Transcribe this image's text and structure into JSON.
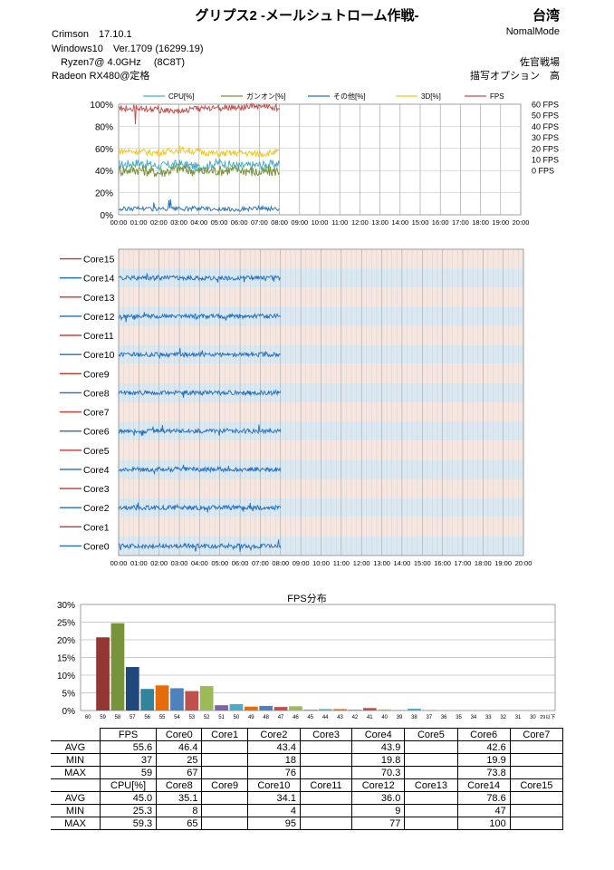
{
  "header": {
    "title": "グリプス2 -メールシュトローム作戦-",
    "region": "台湾",
    "driver": "Crimson　17.10.1",
    "mode": "NomalMode",
    "os": "Windows10　Ver.1709 (16299.19)",
    "cpu": "Ryzen7@ 4.0GHz　 (8C8T)",
    "map": "佐官戦場",
    "gpu": "Radeon RX480@定格",
    "option": "描写オプション　高"
  },
  "colors": {
    "cpu": "#4bacc6",
    "gundam": "#77933c",
    "other": "#2e75b6",
    "d3": "#f2c824",
    "fps": "#c0504d",
    "core_even_line": "#1f6fbf",
    "core_odd_line": "#c0392b",
    "band_blue": "#dae8f2",
    "band_pink": "#f6e6df",
    "bar_red": "#943634",
    "bar_green": "#77933c",
    "bar_navy": "#1f497d",
    "bar_teal": "#31849b",
    "bar_orange": "#e46c0a",
    "bar_blue": "#4f81bd",
    "bar_red2": "#c0504d",
    "bar_lgreen": "#9bbb59",
    "bar_purple": "#8064a2",
    "bar_cyan": "#4bacc6"
  },
  "chart_data": [
    {
      "type": "line",
      "title": "",
      "legend": [
        "CPU[%]",
        "ガンオン[%]",
        "その他[%]",
        "3D[%]",
        "FPS"
      ],
      "legend_position": "top",
      "x_ticks": [
        "00:00",
        "01:00",
        "02:00",
        "03:00",
        "04:00",
        "05:00",
        "06:00",
        "07:00",
        "08:00",
        "09:00",
        "10:00",
        "11:00",
        "12:00",
        "13:00",
        "14:00",
        "15:00",
        "16:00",
        "17:00",
        "18:00",
        "19:00",
        "20:00"
      ],
      "y_ticks_left": [
        "0%",
        "20%",
        "40%",
        "60%",
        "80%",
        "100%"
      ],
      "y_ticks_right": [
        "0 FPS",
        "10 FPS",
        "20 FPS",
        "30 FPS",
        "40 FPS",
        "50 FPS",
        "60 FPS"
      ],
      "ylim_left": [
        0,
        100
      ],
      "ylim_right": [
        -40,
        60
      ],
      "data_end_minute": 480,
      "series": [
        {
          "name": "CPU[%]",
          "axis": "left",
          "x": [
            0,
            60,
            120,
            180,
            240,
            300,
            360,
            420,
            480
          ],
          "values": [
            45,
            47,
            44,
            46,
            43,
            47,
            44,
            45,
            46
          ],
          "min": 25.3,
          "max": 59.3
        },
        {
          "name": "ガンオン[%]",
          "axis": "left",
          "x": [
            0,
            60,
            120,
            180,
            240,
            300,
            360,
            420,
            480
          ],
          "values": [
            40,
            41,
            38,
            42,
            39,
            40,
            41,
            38,
            40
          ]
        },
        {
          "name": "その他[%]",
          "axis": "left",
          "x": [
            0,
            60,
            120,
            180,
            240,
            300,
            360,
            420,
            480
          ],
          "values": [
            5,
            6,
            5,
            5,
            6,
            5,
            5,
            6,
            5
          ]
        },
        {
          "name": "3D[%]",
          "axis": "left",
          "x": [
            0,
            60,
            120,
            180,
            240,
            300,
            360,
            420,
            480
          ],
          "values": [
            58,
            57,
            56,
            59,
            57,
            55,
            56,
            55,
            57
          ]
        },
        {
          "name": "FPS",
          "axis": "right",
          "x": [
            0,
            60,
            120,
            180,
            240,
            300,
            360,
            420,
            480
          ],
          "values": [
            56,
            57,
            55,
            54,
            56,
            57,
            57,
            58,
            57
          ],
          "min": 37,
          "max": 59
        }
      ]
    },
    {
      "type": "line",
      "title": "",
      "x_ticks": [
        "00:00",
        "01:00",
        "02:00",
        "03:00",
        "04:00",
        "05:00",
        "06:00",
        "07:00",
        "08:00",
        "09:00",
        "10:00",
        "11:00",
        "12:00",
        "13:00",
        "14:00",
        "15:00",
        "16:00",
        "17:00",
        "18:00",
        "19:00",
        "20:00"
      ],
      "data_end_minute": 480,
      "series_labels": [
        "Core15",
        "Core14",
        "Core13",
        "Core12",
        "Core11",
        "Core10",
        "Core9",
        "Core8",
        "Core7",
        "Core6",
        "Core5",
        "Core4",
        "Core3",
        "Core2",
        "Core1",
        "Core0"
      ],
      "active_cores": [
        "Core14",
        "Core12",
        "Core10",
        "Core8",
        "Core6",
        "Core4",
        "Core2",
        "Core0"
      ]
    },
    {
      "type": "bar",
      "title": "FPS分布",
      "categories": [
        "60",
        "59",
        "58",
        "57",
        "56",
        "55",
        "54",
        "53",
        "52",
        "51",
        "50",
        "49",
        "48",
        "47",
        "46",
        "45",
        "44",
        "43",
        "42",
        "41",
        "40",
        "39",
        "38",
        "37",
        "36",
        "35",
        "34",
        "33",
        "32",
        "31",
        "30",
        "29以下"
      ],
      "values": [
        0,
        20.7,
        24.7,
        12.3,
        6.1,
        7.1,
        6.3,
        5.5,
        6.9,
        1.5,
        1.8,
        1.1,
        1.3,
        1.0,
        1.2,
        0.2,
        0.4,
        0.4,
        0.2,
        0.7,
        0.3,
        0.1,
        0.5,
        0.1,
        0,
        0,
        0,
        0,
        0,
        0,
        0,
        0
      ],
      "y_ticks": [
        "0%",
        "5%",
        "10%",
        "15%",
        "20%",
        "25%",
        "30%"
      ],
      "ylim": [
        0,
        30
      ]
    }
  ],
  "stats": {
    "row_label": "",
    "top_headers": [
      "FPS",
      "Core0",
      "Core1",
      "Core2",
      "Core3",
      "Core4",
      "Core5",
      "Core6",
      "Core7"
    ],
    "top_rows": [
      {
        "label": "AVG",
        "cells": [
          "55.6",
          "46.4",
          "",
          "43.4",
          "",
          "43.9",
          "",
          "42.6",
          ""
        ]
      },
      {
        "label": "MIN",
        "cells": [
          "37",
          "25",
          "",
          "18",
          "",
          "19.8",
          "",
          "19.9",
          ""
        ]
      },
      {
        "label": "MAX",
        "cells": [
          "59",
          "67",
          "",
          "76",
          "",
          "70.3",
          "",
          "73.8",
          ""
        ]
      }
    ],
    "bottom_headers": [
      "CPU[%]",
      "Core8",
      "Core9",
      "Core10",
      "Core11",
      "Core12",
      "Core13",
      "Core14",
      "Core15"
    ],
    "bottom_rows": [
      {
        "label": "AVG",
        "cells": [
          "45.0",
          "35.1",
          "",
          "34.1",
          "",
          "36.0",
          "",
          "78.6",
          ""
        ]
      },
      {
        "label": "MIN",
        "cells": [
          "25.3",
          "8",
          "",
          "4",
          "",
          "9",
          "",
          "47",
          ""
        ]
      },
      {
        "label": "MAX",
        "cells": [
          "59.3",
          "65",
          "",
          "95",
          "",
          "77",
          "",
          "100",
          ""
        ]
      }
    ]
  }
}
